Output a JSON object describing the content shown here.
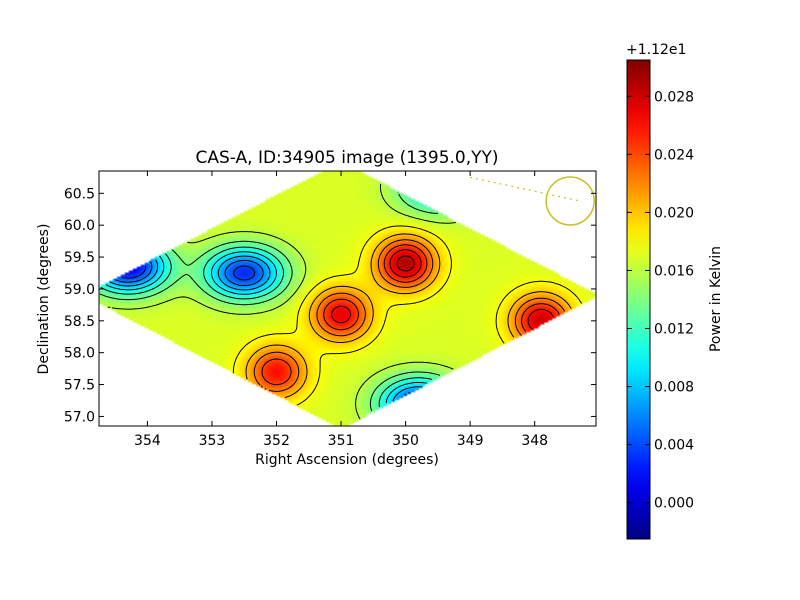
{
  "chart_data": {
    "type": "heatmap",
    "title": "CAS-A, ID:34905 image (1395.0,YY)",
    "xlabel": "Right Ascension (degrees)",
    "ylabel": "Declination (degrees)",
    "x_ticks": [
      "354",
      "353",
      "352",
      "351",
      "350",
      "349",
      "348"
    ],
    "x_tick_values": [
      354,
      353,
      352,
      351,
      350,
      349,
      348
    ],
    "y_ticks": [
      "57.0",
      "57.5",
      "58.0",
      "58.5",
      "59.0",
      "59.5",
      "60.0",
      "60.5"
    ],
    "y_tick_values": [
      57.0,
      57.5,
      58.0,
      58.5,
      59.0,
      59.5,
      60.0,
      60.5
    ],
    "xlim": [
      354.75,
      347.05
    ],
    "ylim": [
      56.85,
      60.85
    ],
    "colorbar": {
      "label": "Power in Kelvin",
      "offset_text": "+1.12e1",
      "ticks": [
        "0.000",
        "0.004",
        "0.008",
        "0.012",
        "0.016",
        "0.020",
        "0.024",
        "0.028"
      ],
      "tick_values": [
        0.0,
        0.004,
        0.008,
        0.012,
        0.016,
        0.02,
        0.024,
        0.028
      ],
      "range": [
        -0.0025,
        0.0305
      ],
      "colormap": "jet"
    },
    "annotations": [
      {
        "type": "beam-circle",
        "ra": 347.45,
        "dec": 60.38,
        "color": "#c8c020"
      },
      {
        "type": "dotted-line",
        "from": [
          349.0,
          60.75
        ],
        "to": [
          347.3,
          60.38
        ],
        "color": "#c8c020"
      }
    ],
    "features": [
      {
        "kind": "minimum",
        "ra": 354.3,
        "dec": 59.35,
        "value": 0.001
      },
      {
        "kind": "minimum",
        "ra": 352.5,
        "dec": 59.25,
        "value": 0.003
      },
      {
        "kind": "minimum",
        "ra": 349.8,
        "dec": 57.2,
        "value": 0.003
      },
      {
        "kind": "minimum",
        "ra": 349.5,
        "dec": 60.6,
        "value": 0.008
      },
      {
        "kind": "maximum",
        "ra": 350.0,
        "dec": 59.4,
        "value": 0.029
      },
      {
        "kind": "maximum",
        "ra": 351.0,
        "dec": 58.6,
        "value": 0.027
      },
      {
        "kind": "maximum",
        "ra": 347.9,
        "dec": 58.5,
        "value": 0.028
      },
      {
        "kind": "maximum",
        "ra": 352.0,
        "dec": 57.7,
        "value": 0.026
      }
    ]
  }
}
